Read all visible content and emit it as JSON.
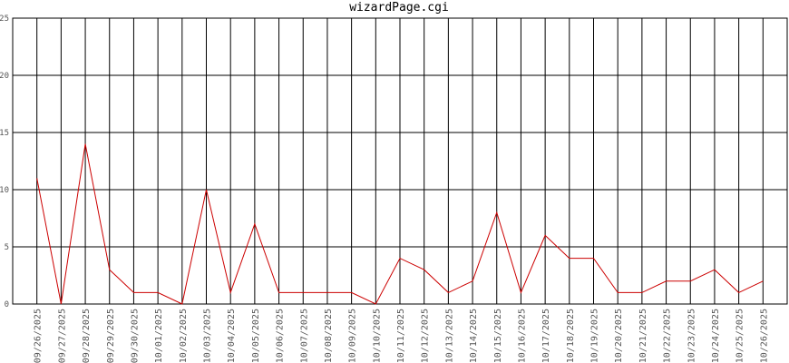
{
  "chart_data": {
    "type": "line",
    "title": "wizardPage.cgi",
    "categories": [
      "09/26/2025",
      "09/27/2025",
      "09/28/2025",
      "09/29/2025",
      "09/30/2025",
      "10/01/2025",
      "10/02/2025",
      "10/03/2025",
      "10/04/2025",
      "10/05/2025",
      "10/06/2025",
      "10/07/2025",
      "10/08/2025",
      "10/09/2025",
      "10/10/2025",
      "10/11/2025",
      "10/12/2025",
      "10/13/2025",
      "10/14/2025",
      "10/15/2025",
      "10/16/2025",
      "10/17/2025",
      "10/18/2025",
      "10/19/2025",
      "10/20/2025",
      "10/21/2025",
      "10/22/2025",
      "10/23/2025",
      "10/24/2025",
      "10/25/2025",
      "10/26/2025"
    ],
    "values": [
      11,
      0,
      14,
      3,
      1,
      1,
      0,
      10,
      1,
      7,
      1,
      1,
      1,
      1,
      0,
      4,
      3,
      1,
      2,
      8,
      1,
      6,
      4,
      4,
      1,
      1,
      2,
      2,
      3,
      1,
      2
    ],
    "color": "#cc0000",
    "ylim": [
      0,
      25
    ],
    "yticks": [
      0,
      5,
      10,
      15,
      20,
      25
    ],
    "grid": true
  }
}
